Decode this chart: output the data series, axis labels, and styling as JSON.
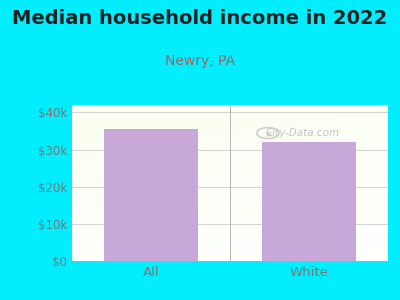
{
  "title": "Median household income in 2022",
  "subtitle": "Newry, PA",
  "categories": [
    "All",
    "White"
  ],
  "values": [
    35500,
    32000
  ],
  "bar_color": "#C8A8D8",
  "background_color": "#00EEFF",
  "title_color": "#222222",
  "subtitle_color": "#996666",
  "tick_label_color": "#777777",
  "ylim": [
    0,
    42000
  ],
  "yticks": [
    0,
    10000,
    20000,
    30000,
    40000
  ],
  "ytick_labels": [
    "$0",
    "$10k",
    "$20k",
    "$30k",
    "$40k"
  ],
  "watermark": "City-Data.com",
  "title_fontsize": 14,
  "subtitle_fontsize": 10,
  "tick_fontsize": 8.5
}
